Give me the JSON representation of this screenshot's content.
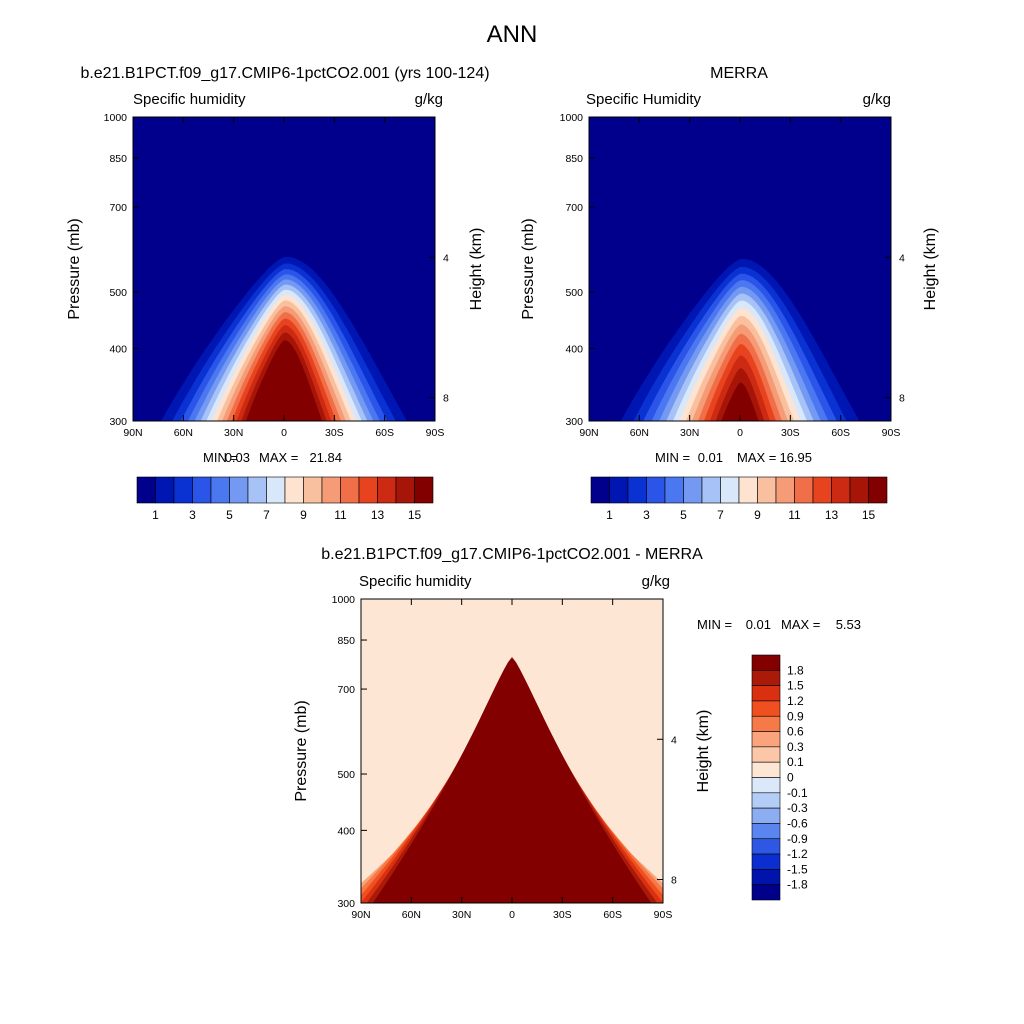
{
  "chart_data": {
    "type": "contour",
    "title": "ANN",
    "panels": [
      {
        "title": "b.e21.B1PCT.f09_g17.CMIP6-1pctCO2.001 (yrs 100-124)",
        "variable": "Specific humidity",
        "units": "g/kg",
        "xlabel": "",
        "ylabel": "Pressure (mb)",
        "y2label": "Height (km)",
        "x_ticks": [
          "90N",
          "60N",
          "30N",
          "0",
          "30S",
          "60S",
          "90S"
        ],
        "y_ticks": [
          "300",
          "400",
          "500",
          "700",
          "850",
          "1000"
        ],
        "y2_ticks": [
          "8",
          "4"
        ],
        "ylim": [
          1000,
          300
        ],
        "y_scale": "log",
        "contour_levels": [
          1,
          2,
          3,
          4,
          5,
          6,
          7,
          8,
          9,
          10,
          11,
          12,
          13,
          14,
          15
        ],
        "peak_value": 21.84,
        "peak_latitude": 0,
        "min_label": "MIN =",
        "min": "0.03",
        "max_label": "MAX =",
        "max": "21.84",
        "colorbar": {
          "labels": [
            "1",
            "3",
            "5",
            "7",
            "9",
            "11",
            "13",
            "15"
          ],
          "orientation": "horizontal",
          "colors": [
            "#00008c",
            "#0016b3",
            "#0a32d2",
            "#2a55e8",
            "#4b78f0",
            "#7399f2",
            "#a6c2f6",
            "#d8e8fa",
            "#fde3d0",
            "#f9c0a0",
            "#f59b76",
            "#f06e48",
            "#e8431f",
            "#cc2a12",
            "#a61508",
            "#820000"
          ]
        }
      },
      {
        "title": "MERRA",
        "variable": "Specific Humidity",
        "units": "g/kg",
        "xlabel": "",
        "ylabel": "Pressure (mb)",
        "y2label": "Height (km)",
        "x_ticks": [
          "90N",
          "60N",
          "30N",
          "0",
          "30S",
          "60S",
          "90S"
        ],
        "y_ticks": [
          "300",
          "400",
          "500",
          "700",
          "850",
          "1000"
        ],
        "y2_ticks": [
          "8",
          "4"
        ],
        "ylim": [
          1000,
          300
        ],
        "y_scale": "log",
        "contour_levels": [
          1,
          2,
          3,
          4,
          5,
          6,
          7,
          8,
          9,
          10,
          11,
          12,
          13,
          14,
          15
        ],
        "peak_value": 16.95,
        "peak_latitude": 0,
        "min_label": "MIN =",
        "min": "0.01",
        "max_label": "MAX =",
        "max": "16.95",
        "colorbar": {
          "labels": [
            "1",
            "3",
            "5",
            "7",
            "9",
            "11",
            "13",
            "15"
          ],
          "orientation": "horizontal",
          "colors": [
            "#00008c",
            "#0016b3",
            "#0a32d2",
            "#2a55e8",
            "#4b78f0",
            "#7399f2",
            "#a6c2f6",
            "#d8e8fa",
            "#fde3d0",
            "#f9c0a0",
            "#f59b76",
            "#f06e48",
            "#e8431f",
            "#cc2a12",
            "#a61508",
            "#820000"
          ]
        }
      },
      {
        "title": "b.e21.B1PCT.f09_g17.CMIP6-1pctCO2.001 - MERRA",
        "variable": "Specific humidity",
        "units": "g/kg",
        "xlabel": "",
        "ylabel": "Pressure (mb)",
        "y2label": "Height (km)",
        "x_ticks": [
          "90N",
          "60N",
          "30N",
          "0",
          "30S",
          "60S",
          "90S"
        ],
        "y_ticks": [
          "300",
          "400",
          "500",
          "700",
          "850",
          "1000"
        ],
        "y2_ticks": [
          "8",
          "4"
        ],
        "ylim": [
          1000,
          300
        ],
        "y_scale": "log",
        "contour_levels": [
          -1.8,
          -1.5,
          -1.2,
          -0.9,
          -0.6,
          -0.3,
          -0.1,
          0,
          0.1,
          0.3,
          0.6,
          0.9,
          1.2,
          1.5,
          1.8
        ],
        "peak_value": 5.53,
        "peak_latitude": 0,
        "min_label": "MIN =",
        "min": "0.01",
        "max_label": "MAX =",
        "max": "5.53",
        "colorbar": {
          "labels": [
            "1.8",
            "1.5",
            "1.2",
            "0.9",
            "0.6",
            "0.3",
            "0.1",
            "0",
            "-0.1",
            "-0.3",
            "-0.6",
            "-0.9",
            "-1.2",
            "-1.5",
            "-1.8"
          ],
          "orientation": "vertical",
          "colors": [
            "#820000",
            "#aa1a08",
            "#d83010",
            "#f05020",
            "#f57a48",
            "#f9a47c",
            "#fcc6a8",
            "#fde6d4",
            "#dbe8fa",
            "#b4cdf6",
            "#8cadf2",
            "#5a85ee",
            "#2e58e4",
            "#0a2ed0",
            "#0014ac",
            "#00008a"
          ]
        }
      }
    ]
  }
}
